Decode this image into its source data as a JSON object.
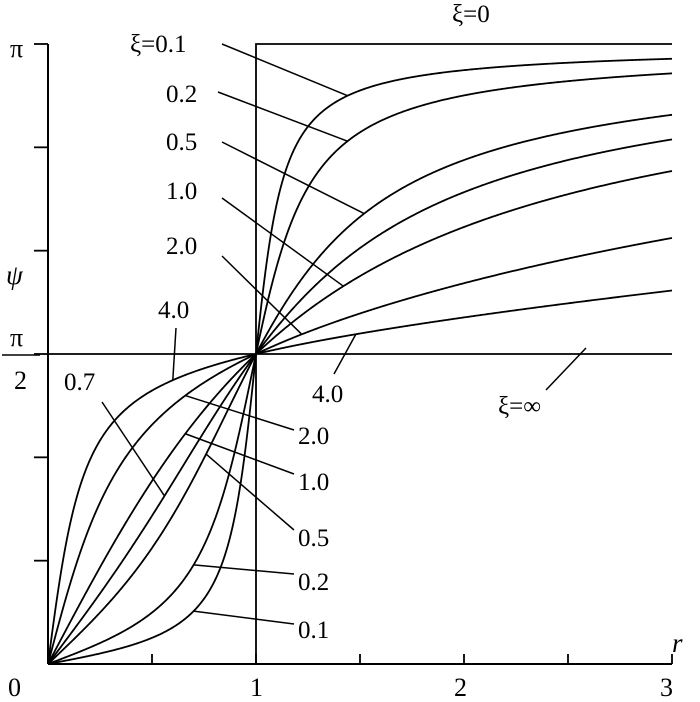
{
  "chart_data": {
    "type": "line",
    "title": "",
    "xlabel": "r",
    "ylabel": "ψ",
    "xlim": [
      0,
      3
    ],
    "ylim": [
      0,
      3.14159
    ],
    "grid": false,
    "x_ticks": [
      0,
      0.5,
      1,
      1.5,
      2,
      2.5,
      3
    ],
    "x_tick_labels": [
      {
        "value": 0,
        "label": "0"
      },
      {
        "value": 1,
        "label": "1"
      },
      {
        "value": 2,
        "label": "2"
      },
      {
        "value": 3,
        "label": "3"
      }
    ],
    "y_ticks": [
      0,
      0.5236,
      1.0472,
      1.5708,
      2.0944,
      2.618,
      3.14159
    ],
    "y_tick_labels": [
      {
        "value": 3.14159,
        "label": "π"
      },
      {
        "value": 1.5708,
        "label_numerator": "π",
        "label_denominator": "2"
      }
    ],
    "reference_lines": [
      {
        "value": 1.5708,
        "label": "ξ=∞"
      }
    ],
    "series": [
      {
        "name": "ξ=0"
      },
      {
        "name": "ξ=0.1",
        "zeta": 0.1
      },
      {
        "name": "0.2",
        "zeta": 0.2
      },
      {
        "name": "0.5",
        "zeta": 0.5
      },
      {
        "name": "0.7",
        "zeta": 0.7
      },
      {
        "name": "1.0",
        "zeta": 1.0
      },
      {
        "name": "2.0",
        "zeta": 2.0
      },
      {
        "name": "4.0",
        "zeta": 4.0
      }
    ],
    "annotations": {
      "upper": [
        {
          "text": "ξ=0.1",
          "zeta": 0.1
        },
        {
          "text": "0.2",
          "zeta": 0.2
        },
        {
          "text": "0.5",
          "zeta": 0.5
        },
        {
          "text": "1.0",
          "zeta": 1.0
        },
        {
          "text": "2.0",
          "zeta": 2.0
        },
        {
          "text": "4.0",
          "zeta": 4.0
        },
        {
          "text": "4.0",
          "zeta": 4.0
        }
      ],
      "lower": [
        {
          "text": "0.7",
          "zeta": 0.7
        },
        {
          "text": "2.0",
          "zeta": 2.0
        },
        {
          "text": "1.0",
          "zeta": 1.0
        },
        {
          "text": "0.5",
          "zeta": 0.5
        },
        {
          "text": "0.2",
          "zeta": 0.2
        },
        {
          "text": "0.1",
          "zeta": 0.1
        }
      ],
      "zero": "ξ=0",
      "infinity": "ξ=∞"
    }
  }
}
